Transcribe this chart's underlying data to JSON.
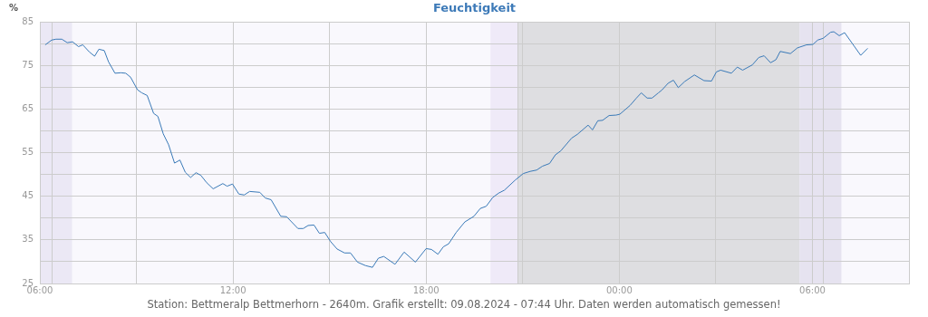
{
  "chart_data": {
    "type": "line",
    "title": "Feuchtigkeit",
    "ylabel": "%",
    "annotations": [
      "Station: Bettmeralp Bettmerhorn - 2640m. Grafik erstellt: 09.08.2024 - 07:44 Uhr. Daten werden automatisch gemessen!"
    ],
    "xlim": [
      "2024-08-08T06:00",
      "2024-08-09T09:00"
    ],
    "xticks": [
      {
        "value": "2024-08-08T06:00",
        "label": "06:00"
      },
      {
        "value": "2024-08-08T09:00",
        "label": null
      },
      {
        "value": "2024-08-08T12:00",
        "label": "12:00"
      },
      {
        "value": "2024-08-08T15:00",
        "label": null
      },
      {
        "value": "2024-08-08T18:00",
        "label": "18:00"
      },
      {
        "value": "2024-08-08T21:00",
        "label": null
      },
      {
        "value": "2024-08-09T00:00",
        "label": "00:00"
      },
      {
        "value": "2024-08-09T03:00",
        "label": null
      },
      {
        "value": "2024-08-09T06:00",
        "label": "06:00"
      },
      {
        "value": "2024-08-09T09:00",
        "label": null
      }
    ],
    "ylim": [
      25,
      85
    ],
    "yticks": [
      25,
      {
        "value": 30,
        "label": null
      },
      35,
      {
        "value": 40,
        "label": null
      },
      45,
      {
        "value": 50,
        "label": null
      },
      55,
      {
        "value": 60,
        "label": null
      },
      65,
      {
        "value": 70,
        "label": null
      },
      75,
      {
        "value": 80,
        "label": null
      },
      85
    ],
    "grid": true,
    "marker": "none",
    "bands": [
      {
        "axis": "x",
        "from": "2024-08-08T06:00",
        "to": "2024-08-08T07:00",
        "color": "#ebe8f5"
      },
      {
        "axis": "x",
        "from": "2024-08-08T20:00",
        "to": "2024-08-08T20:51",
        "color": "#efeaf8"
      },
      {
        "axis": "x",
        "from": "2024-08-08T20:51",
        "to": "2024-08-09T05:36",
        "color": "#dedee1"
      },
      {
        "axis": "x",
        "from": "2024-08-09T05:36",
        "to": "2024-08-09T06:54",
        "color": "#e6e3f0"
      }
    ],
    "ref_lines": [
      {
        "axis": "x",
        "value": "2024-08-08T06:22",
        "color": "#cccccc"
      },
      {
        "axis": "x",
        "value": "2024-08-08T20:51",
        "color": "#cccccc"
      },
      {
        "axis": "x",
        "value": "2024-08-09T06:20",
        "color": "#cccccc"
      }
    ],
    "series": [
      {
        "color": "#3a7ab8",
        "x": [
          "2024-08-08T06:10",
          "2024-08-08T06:22",
          "2024-08-08T06:30",
          "2024-08-08T06:41",
          "2024-08-08T06:51",
          "2024-08-08T07:01",
          "2024-08-08T07:12",
          "2024-08-08T07:20",
          "2024-08-08T07:32",
          "2024-08-08T07:42",
          "2024-08-08T07:50",
          "2024-08-08T08:00",
          "2024-08-08T08:08",
          "2024-08-08T08:20",
          "2024-08-08T08:31",
          "2024-08-08T08:40",
          "2024-08-08T08:49",
          "2024-08-08T09:02",
          "2024-08-08T09:10",
          "2024-08-08T09:20",
          "2024-08-08T09:32",
          "2024-08-08T09:40",
          "2024-08-08T09:50",
          "2024-08-08T10:00",
          "2024-08-08T10:11",
          "2024-08-08T10:21",
          "2024-08-08T10:31",
          "2024-08-08T10:41",
          "2024-08-08T10:51",
          "2024-08-08T11:00",
          "2024-08-08T11:11",
          "2024-08-08T11:23",
          "2024-08-08T11:41",
          "2024-08-08T11:49",
          "2024-08-08T11:59",
          "2024-08-08T12:11",
          "2024-08-08T12:21",
          "2024-08-08T12:31",
          "2024-08-08T12:50",
          "2024-08-08T13:00",
          "2024-08-08T13:11",
          "2024-08-08T13:29",
          "2024-08-08T13:40",
          "2024-08-08T14:01",
          "2024-08-08T14:11",
          "2024-08-08T14:20",
          "2024-08-08T14:31",
          "2024-08-08T14:41",
          "2024-08-08T14:51",
          "2024-08-08T15:02",
          "2024-08-08T15:14",
          "2024-08-08T15:28",
          "2024-08-08T15:39",
          "2024-08-08T15:52",
          "2024-08-08T16:07",
          "2024-08-08T16:20",
          "2024-08-08T16:31",
          "2024-08-08T16:41",
          "2024-08-08T17:02",
          "2024-08-08T17:19",
          "2024-08-08T17:40",
          "2024-08-08T18:00",
          "2024-08-08T18:10",
          "2024-08-08T18:22",
          "2024-08-08T18:32",
          "2024-08-08T18:42",
          "2024-08-08T18:56",
          "2024-08-08T19:12",
          "2024-08-08T19:29",
          "2024-08-08T19:41",
          "2024-08-08T19:52",
          "2024-08-08T20:04",
          "2024-08-08T20:15",
          "2024-08-08T20:26",
          "2024-08-08T20:46",
          "2024-08-08T21:01",
          "2024-08-08T21:14",
          "2024-08-08T21:26",
          "2024-08-08T21:37",
          "2024-08-08T21:50",
          "2024-08-08T22:01",
          "2024-08-08T22:11",
          "2024-08-08T22:31",
          "2024-08-08T22:42",
          "2024-08-08T23:02",
          "2024-08-08T23:10",
          "2024-08-08T23:20",
          "2024-08-08T23:29",
          "2024-08-08T23:41",
          "2024-08-08T23:54",
          "2024-08-09T00:01",
          "2024-08-09T00:20",
          "2024-08-09T00:32",
          "2024-08-09T00:41",
          "2024-08-09T00:52",
          "2024-08-09T01:01",
          "2024-08-09T01:13",
          "2024-08-09T01:20",
          "2024-08-09T01:31",
          "2024-08-09T01:41",
          "2024-08-09T01:50",
          "2024-08-09T02:02",
          "2024-08-09T02:20",
          "2024-08-09T02:38",
          "2024-08-09T02:52",
          "2024-08-09T03:01",
          "2024-08-09T03:09",
          "2024-08-09T03:29",
          "2024-08-09T03:40",
          "2024-08-09T03:50",
          "2024-08-09T04:08",
          "2024-08-09T04:20",
          "2024-08-09T04:30",
          "2024-08-09T04:42",
          "2024-08-09T04:52",
          "2024-08-09T05:00",
          "2024-08-09T05:19",
          "2024-08-09T05:32",
          "2024-08-09T05:49",
          "2024-08-09T06:01",
          "2024-08-09T06:10",
          "2024-08-09T06:20",
          "2024-08-09T06:34",
          "2024-08-09T06:40",
          "2024-08-09T06:50",
          "2024-08-09T07:00",
          "2024-08-09T07:30",
          "2024-08-09T07:43"
        ],
        "values": [
          79.7,
          80.8,
          81.0,
          81.0,
          80.2,
          80.4,
          79.3,
          79.7,
          78.1,
          77.1,
          78.7,
          78.4,
          75.8,
          73.2,
          73.3,
          73.2,
          72.3,
          69.4,
          68.7,
          68.1,
          64.0,
          63.3,
          59.3,
          56.8,
          52.6,
          53.3,
          50.5,
          49.3,
          50.4,
          49.8,
          48.1,
          46.7,
          47.9,
          47.3,
          47.8,
          45.5,
          45.3,
          46.1,
          45.9,
          44.6,
          44.2,
          40.4,
          40.3,
          37.6,
          37.6,
          38.3,
          38.4,
          36.5,
          36.7,
          34.6,
          32.9,
          32.0,
          32.0,
          29.9,
          29.1,
          28.7,
          30.8,
          31.2,
          29.4,
          32.2,
          29.9,
          33.0,
          32.8,
          31.7,
          33.4,
          34.1,
          36.7,
          39.1,
          40.4,
          42.2,
          42.7,
          44.7,
          45.7,
          46.4,
          48.7,
          50.2,
          50.7,
          51.0,
          51.9,
          52.5,
          54.5,
          55.4,
          58.3,
          59.2,
          61.3,
          60.2,
          62.3,
          62.4,
          63.5,
          63.6,
          63.8,
          65.8,
          67.5,
          68.7,
          67.5,
          67.5,
          68.7,
          69.4,
          70.9,
          71.6,
          69.9,
          71.3,
          72.8,
          71.5,
          71.4,
          73.5,
          73.9,
          73.2,
          74.6,
          73.9,
          75.1,
          76.8,
          77.2,
          75.6,
          76.3,
          78.2,
          77.7,
          79.0,
          79.7,
          79.8,
          80.8,
          81.2,
          82.6,
          82.7,
          81.8,
          82.5,
          77.3,
          78.9
        ]
      }
    ]
  }
}
